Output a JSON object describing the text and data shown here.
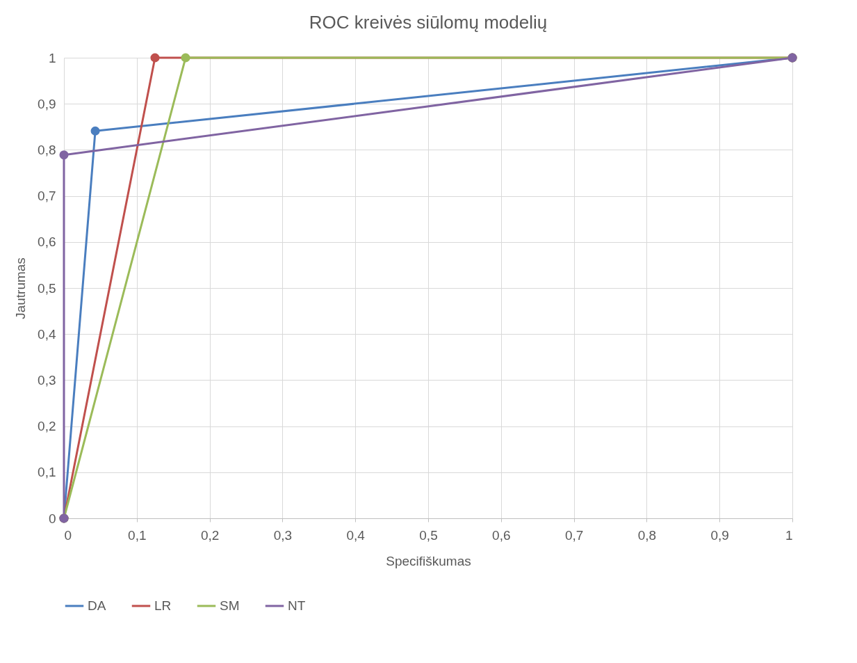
{
  "chart_data": {
    "type": "line",
    "title": "ROC kreivės siūlomų modelių",
    "xlabel": "Specifiškumas",
    "ylabel": "Jautrumas",
    "xlim": [
      0,
      1
    ],
    "ylim": [
      0,
      1
    ],
    "xticks": [
      0,
      {
        "value": 0.1,
        "label": "0,1"
      },
      {
        "value": 0.2,
        "label": "0,2"
      },
      {
        "value": 0.3,
        "label": "0,3"
      },
      {
        "value": 0.4,
        "label": "0,4"
      },
      {
        "value": 0.5,
        "label": "0,5"
      },
      {
        "value": 0.6,
        "label": "0,6"
      },
      {
        "value": 0.7,
        "label": "0,7"
      },
      {
        "value": 0.8,
        "label": "0,8"
      },
      {
        "value": 0.9,
        "label": "0,9"
      },
      1
    ],
    "yticks": [
      0,
      {
        "value": 0.1,
        "label": "0,1"
      },
      {
        "value": 0.2,
        "label": "0,2"
      },
      {
        "value": 0.3,
        "label": "0,3"
      },
      {
        "value": 0.4,
        "label": "0,4"
      },
      {
        "value": 0.5,
        "label": "0,5"
      },
      {
        "value": 0.6,
        "label": "0,6"
      },
      {
        "value": 0.7,
        "label": "0,7"
      },
      {
        "value": 0.8,
        "label": "0,8"
      },
      {
        "value": 0.9,
        "label": "0,9"
      },
      1
    ],
    "grid": true,
    "legend": "bottom",
    "marker": "circle",
    "line_style": "solid",
    "series": [
      {
        "name": "DA",
        "color": "#4a7ebf",
        "x": [
          0,
          0.043,
          1
        ],
        "values": [
          0,
          0.841,
          1
        ]
      },
      {
        "name": "LR",
        "color": "#c0504d",
        "x": [
          0,
          0.125,
          1
        ],
        "values": [
          0,
          1,
          1
        ]
      },
      {
        "name": "SM",
        "color": "#9bbb59",
        "x": [
          0,
          0.167,
          1
        ],
        "values": [
          0,
          1,
          1
        ]
      },
      {
        "name": "NT",
        "color": "#8064a2",
        "x": [
          0,
          0,
          1
        ],
        "values": [
          0,
          0.789,
          1
        ]
      }
    ]
  }
}
